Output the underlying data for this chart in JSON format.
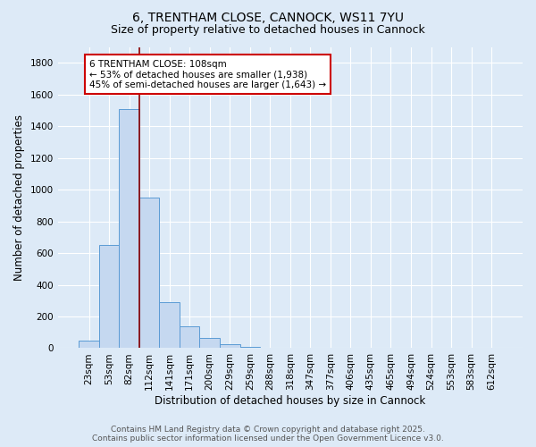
{
  "title_line1": "6, TRENTHAM CLOSE, CANNOCK, WS11 7YU",
  "title_line2": "Size of property relative to detached houses in Cannock",
  "xlabel": "Distribution of detached houses by size in Cannock",
  "ylabel": "Number of detached properties",
  "bar_labels": [
    "23sqm",
    "53sqm",
    "82sqm",
    "112sqm",
    "141sqm",
    "171sqm",
    "200sqm",
    "229sqm",
    "259sqm",
    "288sqm",
    "318sqm",
    "347sqm",
    "377sqm",
    "406sqm",
    "435sqm",
    "465sqm",
    "494sqm",
    "524sqm",
    "553sqm",
    "583sqm",
    "612sqm"
  ],
  "bar_values": [
    50,
    650,
    1510,
    950,
    290,
    140,
    65,
    25,
    8,
    3,
    2,
    1,
    1,
    1,
    0,
    0,
    0,
    0,
    0,
    0,
    0
  ],
  "bar_color": "#c5d8f0",
  "bar_edge_color": "#5b9bd5",
  "vline_color": "#8b0000",
  "annotation_text": "6 TRENTHAM CLOSE: 108sqm\n← 53% of detached houses are smaller (1,938)\n45% of semi-detached houses are larger (1,643) →",
  "annotation_box_color": "#ffffff",
  "annotation_box_edge": "#cc0000",
  "background_color": "#ddeaf7",
  "plot_bg_color": "#ddeaf7",
  "grid_color": "#ffffff",
  "footer_line1": "Contains HM Land Registry data © Crown copyright and database right 2025.",
  "footer_line2": "Contains public sector information licensed under the Open Government Licence v3.0.",
  "ylim": [
    0,
    1900
  ],
  "yticks": [
    0,
    200,
    400,
    600,
    800,
    1000,
    1200,
    1400,
    1600,
    1800
  ],
  "title_fontsize": 10,
  "subtitle_fontsize": 9,
  "axis_label_fontsize": 8.5,
  "tick_fontsize": 7.5,
  "annotation_fontsize": 7.5,
  "footer_fontsize": 6.5
}
